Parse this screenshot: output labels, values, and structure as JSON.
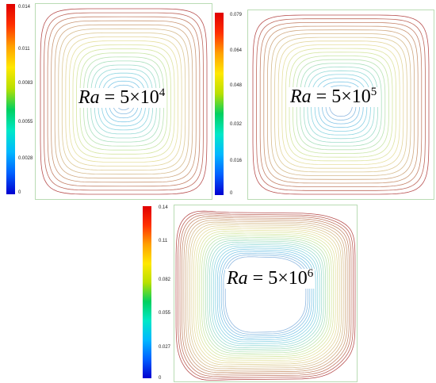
{
  "panels": [
    {
      "id": "ra-5e4",
      "label": {
        "var": "Ra",
        "eq": " = 5×10",
        "exp": "4"
      },
      "colorbar_ticks": [
        "0.014",
        "0.011",
        "0.0083",
        "0.0055",
        "0.0028",
        "0"
      ],
      "shape": "square",
      "inner_scale": 0.09,
      "levels": 22
    },
    {
      "id": "ra-5e5",
      "label": {
        "var": "Ra",
        "eq": " = 5×10",
        "exp": "5"
      },
      "colorbar_ticks": [
        "0.079",
        "0.064",
        "0.048",
        "0.032",
        "0.016",
        "0"
      ],
      "shape": "square",
      "inner_scale": 0.13,
      "levels": 22
    },
    {
      "id": "ra-5e6",
      "label": {
        "var": "Ra",
        "eq": " = 5×10",
        "exp": "6"
      },
      "colorbar_ticks": [
        "0.14",
        "0.11",
        "0.082",
        "0.055",
        "0.027",
        "0"
      ],
      "shape": "distorted",
      "inner_scale": 0.45,
      "levels": 26
    }
  ],
  "colormap": [
    "#0000d0",
    "#0060ff",
    "#00b8ff",
    "#00e8c8",
    "#00d060",
    "#b8e000",
    "#ffe800",
    "#ffa000",
    "#ff3000",
    "#e00000"
  ]
}
